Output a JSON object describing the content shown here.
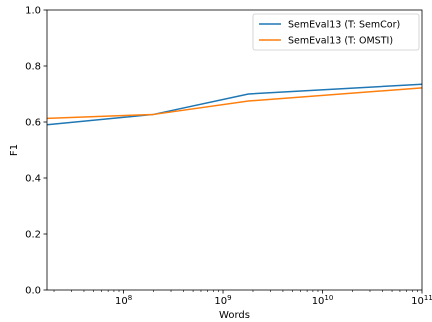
{
  "chart_data": {
    "type": "line",
    "xlabel": "Words",
    "ylabel": "F1",
    "x_scale": "log",
    "xlim": [
      17000000,
      100000000000
    ],
    "ylim": [
      0.0,
      1.0
    ],
    "grid": false,
    "legend_position": "top-right",
    "y_ticks": [
      {
        "value": 0.0,
        "label": "0.0"
      },
      {
        "value": 0.2,
        "label": "0.2"
      },
      {
        "value": 0.4,
        "label": "0.4"
      },
      {
        "value": 0.6,
        "label": "0.6"
      },
      {
        "value": 0.8,
        "label": "0.8"
      },
      {
        "value": 1.0,
        "label": "1.0"
      }
    ],
    "x_ticks": [
      {
        "value": 100000000,
        "base": "10",
        "exp": "8"
      },
      {
        "value": 1000000000,
        "base": "10",
        "exp": "9"
      },
      {
        "value": 10000000000,
        "base": "10",
        "exp": "10"
      },
      {
        "value": 100000000000,
        "base": "10",
        "exp": "11"
      }
    ],
    "series": [
      {
        "name": "SemEval13 (T: SemCor)",
        "color": "#1f77b4",
        "points": [
          [
            17000000,
            0.59
          ],
          [
            200000000,
            0.627
          ],
          [
            1800000000,
            0.7
          ],
          [
            100000000000,
            0.735
          ]
        ]
      },
      {
        "name": "SemEval13 (T: OMSTI)",
        "color": "#ff7f0e",
        "points": [
          [
            17000000,
            0.613
          ],
          [
            200000000,
            0.627
          ],
          [
            1800000000,
            0.675
          ],
          [
            100000000000,
            0.722
          ]
        ]
      }
    ]
  }
}
